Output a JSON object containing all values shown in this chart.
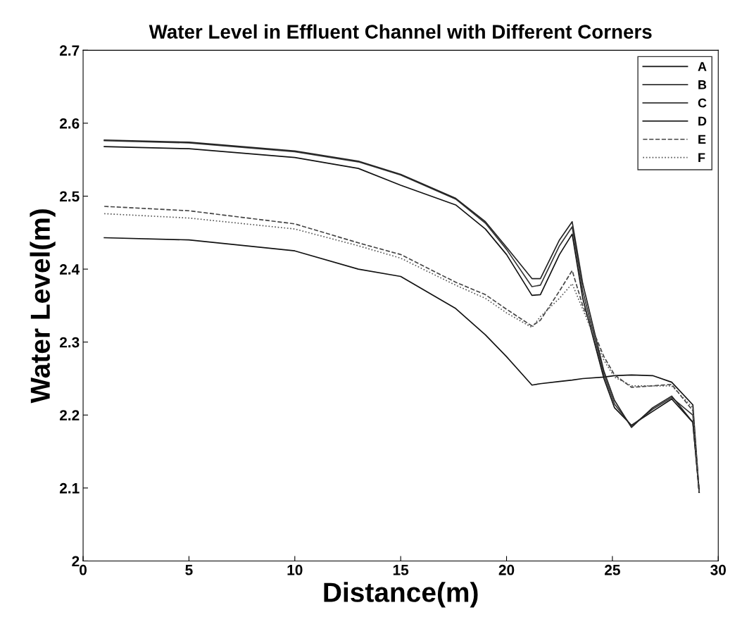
{
  "chart_data": {
    "type": "line",
    "title": "Water Level in Effluent Channel with Different Corners",
    "xlabel": "Distance(m)",
    "ylabel": "Water Level(m)",
    "x": [
      1,
      5,
      10,
      13,
      15,
      17.6,
      19,
      20,
      21.2,
      21.6,
      22.5,
      23.1,
      23.6,
      24.6,
      25.1,
      25.9,
      26.9,
      27.8,
      28.8,
      29.1
    ],
    "series": [
      {
        "name": "A",
        "color": "#111111",
        "line_style": "solid",
        "values": [
          2.443,
          2.44,
          2.425,
          2.4,
          2.39,
          2.346,
          2.31,
          2.28,
          2.241,
          2.243,
          2.246,
          2.248,
          2.25,
          2.252,
          2.254,
          2.255,
          2.254,
          2.245,
          2.214,
          2.094
        ]
      },
      {
        "name": "B",
        "color": "#111111",
        "line_style": "solid",
        "values": [
          2.568,
          2.565,
          2.553,
          2.538,
          2.515,
          2.488,
          2.455,
          2.42,
          2.364,
          2.365,
          2.42,
          2.448,
          2.36,
          2.25,
          2.21,
          2.186,
          2.205,
          2.222,
          2.19,
          2.094
        ]
      },
      {
        "name": "C",
        "color": "#333333",
        "line_style": "solid",
        "values": [
          2.576,
          2.573,
          2.561,
          2.547,
          2.529,
          2.496,
          2.463,
          2.427,
          2.376,
          2.378,
          2.432,
          2.458,
          2.37,
          2.255,
          2.215,
          2.185,
          2.208,
          2.224,
          2.2,
          2.094
        ]
      },
      {
        "name": "D",
        "color": "#222222",
        "line_style": "solid",
        "values": [
          2.577,
          2.574,
          2.562,
          2.548,
          2.53,
          2.497,
          2.465,
          2.43,
          2.387,
          2.387,
          2.44,
          2.465,
          2.38,
          2.26,
          2.22,
          2.183,
          2.21,
          2.226,
          2.19,
          2.094
        ]
      },
      {
        "name": "E",
        "color": "#444444",
        "line_style": "dashed",
        "values": [
          2.486,
          2.48,
          2.462,
          2.436,
          2.42,
          2.382,
          2.365,
          2.345,
          2.322,
          2.33,
          2.37,
          2.398,
          2.35,
          2.28,
          2.255,
          2.238,
          2.24,
          2.242,
          2.206,
          2.094
        ]
      },
      {
        "name": "F",
        "color": "#555555",
        "line_style": "dotted",
        "values": [
          2.476,
          2.47,
          2.455,
          2.432,
          2.415,
          2.378,
          2.36,
          2.34,
          2.32,
          2.335,
          2.36,
          2.38,
          2.345,
          2.275,
          2.252,
          2.24,
          2.24,
          2.24,
          2.21,
          2.094
        ]
      }
    ],
    "xlim": [
      0,
      30
    ],
    "xticks": [
      0,
      5,
      10,
      15,
      20,
      25,
      30
    ],
    "ylim": [
      2,
      2.7
    ],
    "yticks": [
      2,
      2.1,
      2.2,
      2.3,
      2.4,
      2.5,
      2.6,
      2.7
    ],
    "grid": false,
    "legend": "top right",
    "marker": "none"
  }
}
